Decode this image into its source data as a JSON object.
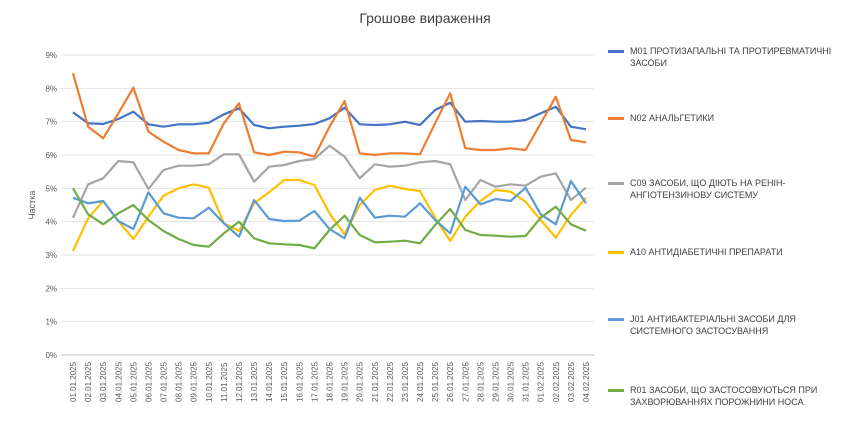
{
  "chart_data": {
    "type": "line",
    "title": "Грошове вираження",
    "xlabel": "",
    "ylabel": "Частка",
    "ylim": [
      0,
      9
    ],
    "y_ticks": [
      "0%",
      "1%",
      "2%",
      "3%",
      "4%",
      "5%",
      "6%",
      "7%",
      "8%",
      "9%"
    ],
    "y_unit": "%",
    "grid": true,
    "legend_position": "right",
    "categories": [
      "01.01.2025",
      "02.01.2025",
      "03.01.2025",
      "04.01.2025",
      "05.01.2025",
      "06.01.2025",
      "07.01.2025",
      "08.01.2025",
      "09.01.2025",
      "10.01.2025",
      "11.01.2025",
      "12.01.2025",
      "13.01.2025",
      "14.01.2025",
      "15.01.2025",
      "16.01.2025",
      "17.01.2025",
      "18.01.2025",
      "19.01.2025",
      "20.01.2025",
      "21.01.2025",
      "22.01.2025",
      "23.01.2025",
      "24.01.2025",
      "25.01.2025",
      "26.01.2025",
      "27.01.2025",
      "28.01.2025",
      "29.01.2025",
      "30.01.2025",
      "31.01.2025",
      "01.02.2025",
      "02.02.2025",
      "03.02.2025",
      "04.02.2025"
    ],
    "series": [
      {
        "name": "M01 ПРОТИЗАПАЛЬНІ ТА ПРОТИРЕВМАТИЧНІ ЗАСОБИ",
        "color": "#4472C4",
        "values": [
          7.28,
          6.95,
          6.93,
          7.08,
          7.3,
          6.92,
          6.85,
          6.92,
          6.92,
          6.97,
          7.22,
          7.4,
          6.9,
          6.8,
          6.85,
          6.88,
          6.93,
          7.1,
          7.42,
          6.92,
          6.9,
          6.92,
          7.0,
          6.9,
          7.35,
          7.57,
          7.0,
          7.02,
          7.0,
          7.0,
          7.05,
          7.25,
          7.45,
          6.85,
          6.77
        ]
      },
      {
        "name": "N02 АНАЛЬГЕТИКИ",
        "color": "#ED7D31",
        "values": [
          8.45,
          6.85,
          6.5,
          7.25,
          8.02,
          6.7,
          6.4,
          6.15,
          6.05,
          6.05,
          6.95,
          7.55,
          6.08,
          6.0,
          6.1,
          6.08,
          5.95,
          6.85,
          7.62,
          6.05,
          6.0,
          6.05,
          6.05,
          6.02,
          6.95,
          7.85,
          6.2,
          6.15,
          6.15,
          6.2,
          6.15,
          6.95,
          7.75,
          6.45,
          6.38
        ]
      },
      {
        "name": "C09 ЗАСОБИ, ЩО ДІЮТЬ НА РЕНІН-АНГІОТЕНЗИНОВУ СИСТЕМУ",
        "color": "#A5A5A5",
        "values": [
          4.12,
          5.12,
          5.3,
          5.82,
          5.78,
          4.98,
          5.55,
          5.68,
          5.68,
          5.72,
          6.02,
          6.02,
          5.2,
          5.65,
          5.7,
          5.82,
          5.88,
          6.28,
          5.95,
          5.3,
          5.72,
          5.65,
          5.68,
          5.78,
          5.82,
          5.72,
          4.65,
          5.25,
          5.05,
          5.12,
          5.08,
          5.35,
          5.45,
          4.65,
          5.02
        ]
      },
      {
        "name": "A10 АНТИДІАБЕТИЧНІ ПРЕПАРАТИ",
        "color": "#FFC000",
        "values": [
          3.12,
          4.1,
          4.62,
          4.02,
          3.48,
          4.15,
          4.78,
          5.0,
          5.12,
          5.02,
          3.95,
          3.72,
          4.55,
          4.88,
          5.25,
          5.25,
          5.1,
          4.25,
          3.62,
          4.5,
          4.95,
          5.08,
          4.98,
          4.92,
          4.12,
          3.42,
          4.15,
          4.62,
          4.95,
          4.9,
          4.6,
          4.05,
          3.52,
          4.2,
          4.72
        ]
      },
      {
        "name": "J01 АНТИБАКТЕРІАЛЬНІ ЗАСОБИ ДЛЯ СИСТЕМНОГО ЗАСТОСУВАННЯ",
        "color": "#5B9BD5",
        "values": [
          4.72,
          4.55,
          4.62,
          4.02,
          3.78,
          4.88,
          4.25,
          4.12,
          4.1,
          4.42,
          3.95,
          3.55,
          4.65,
          4.08,
          4.02,
          4.03,
          4.32,
          3.78,
          3.5,
          4.72,
          4.12,
          4.18,
          4.15,
          4.55,
          4.05,
          3.65,
          5.05,
          4.52,
          4.68,
          4.62,
          5.02,
          4.22,
          3.92,
          5.22,
          4.55
        ]
      },
      {
        "name": "R01 ЗАСОБИ, ЩО ЗАСТОСОВУЮТЬСЯ ПРИ ЗАХВОРЮВАННЯХ ПОРОЖНИНИ НОСА",
        "color": "#70AD47",
        "values": [
          5.0,
          4.22,
          3.92,
          4.25,
          4.5,
          4.05,
          3.72,
          3.48,
          3.3,
          3.25,
          3.65,
          4.0,
          3.5,
          3.35,
          3.32,
          3.3,
          3.2,
          3.75,
          4.18,
          3.6,
          3.38,
          3.4,
          3.43,
          3.35,
          3.9,
          4.38,
          3.75,
          3.6,
          3.58,
          3.55,
          3.57,
          4.12,
          4.45,
          3.92,
          3.73
        ]
      }
    ]
  }
}
